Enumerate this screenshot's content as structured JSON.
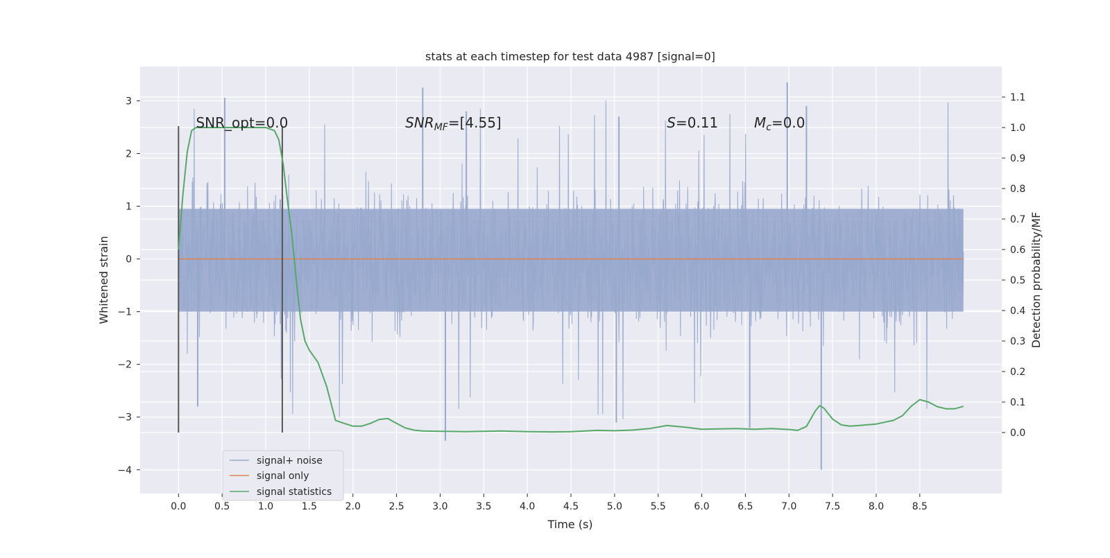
{
  "chart_data": {
    "type": "line",
    "title": "stats at each timestep for test data 4987 [signal=0]",
    "xlabel": "Time (s)",
    "ylabel": "Whitened strain",
    "y2label": "Detection probability/MF",
    "xlim": [
      -0.44,
      9.44
    ],
    "ylim": [
      -4.45,
      3.65
    ],
    "y2lim": [
      -0.2,
      1.2
    ],
    "xticks": [
      0.0,
      0.5,
      1.0,
      1.5,
      2.0,
      2.5,
      3.0,
      3.5,
      4.0,
      4.5,
      5.0,
      5.5,
      6.0,
      6.5,
      7.0,
      7.5,
      8.0,
      8.5
    ],
    "xtick_labels": [
      "0.0",
      "0.5",
      "1.0",
      "1.5",
      "2.0",
      "2.5",
      "3.0",
      "3.5",
      "4.0",
      "4.5",
      "5.0",
      "5.5",
      "6.0",
      "6.5",
      "7.0",
      "7.5",
      "8.0",
      "8.5"
    ],
    "yticks": [
      3,
      2,
      1,
      0,
      -1,
      -2,
      -3,
      -4
    ],
    "ytick_labels": [
      "3",
      "2",
      "1",
      "0",
      "−1",
      "−2",
      "−3",
      "−4"
    ],
    "y2ticks": [
      1.1,
      1.0,
      0.9,
      0.8,
      0.7,
      0.6,
      0.5,
      0.4,
      0.3,
      0.2,
      0.1,
      0.0
    ],
    "y2tick_labels": [
      "1.1",
      "1.0",
      "0.9",
      "0.8",
      "0.7",
      "0.6",
      "0.5",
      "0.4",
      "0.3",
      "0.2",
      "0.1",
      "0.0"
    ],
    "grid": true,
    "legend_position": "lower-left",
    "colors": {
      "background": "#eaeaf2",
      "grid": "#ffffff",
      "noise": "#98a9cd",
      "signal": "#dd8452",
      "stats": "#55a868",
      "vline": "#555555"
    },
    "annotations": [
      {
        "name": "snr-opt",
        "parts": [
          {
            "t": "SNR_opt=0.0",
            "italic": false
          }
        ],
        "x": 0.2,
        "y2": 1.0
      },
      {
        "name": "snr-mf",
        "parts": [
          {
            "t": "SNR",
            "italic": true
          },
          {
            "t": "MF",
            "italic": true,
            "sub": true
          },
          {
            "t": "=[4.55]",
            "italic": false
          }
        ],
        "x": 2.6,
        "y2": 1.0
      },
      {
        "name": "s-value",
        "parts": [
          {
            "t": "S",
            "italic": true
          },
          {
            "t": "=0.11",
            "italic": false
          }
        ],
        "x": 5.6,
        "y2": 1.0
      },
      {
        "name": "mc-value",
        "parts": [
          {
            "t": "M",
            "italic": true
          },
          {
            "t": "c",
            "italic": true,
            "sub": true
          },
          {
            "t": "=0.0",
            "italic": false
          }
        ],
        "x": 6.6,
        "y2": 1.0
      }
    ],
    "vertical_lines": [
      {
        "x": 0.0,
        "y2_from": 0.0,
        "y2_to": 1.0
      },
      {
        "x": 1.19,
        "y2_from": 0.0,
        "y2_to": 1.0
      }
    ],
    "series": [
      {
        "name": "signal+ noise",
        "axis": "left",
        "style": "noise",
        "x_range": [
          0.0,
          9.0
        ],
        "core_band": [
          -1.0,
          0.95
        ],
        "spike_high": [
          3.06,
          3.25,
          3.35,
          2.9,
          2.7,
          2.8
        ],
        "spike_low": [
          -4.0,
          -3.45,
          -3.1,
          -3.2,
          -2.8
        ]
      },
      {
        "name": "signal only",
        "axis": "left",
        "style": "signal",
        "x": [
          0.0,
          9.0
        ],
        "y": [
          0.0,
          0.0
        ]
      },
      {
        "name": "signal statistics",
        "axis": "right",
        "style": "stats",
        "x": [
          0.0,
          0.05,
          0.1,
          0.15,
          0.2,
          0.3,
          0.4,
          0.5,
          0.6,
          0.7,
          0.8,
          0.9,
          1.0,
          1.05,
          1.1,
          1.15,
          1.2,
          1.25,
          1.3,
          1.35,
          1.4,
          1.45,
          1.5,
          1.6,
          1.7,
          1.8,
          1.9,
          2.0,
          2.1,
          2.2,
          2.3,
          2.4,
          2.5,
          2.6,
          2.7,
          2.8,
          3.0,
          3.3,
          3.5,
          3.7,
          4.0,
          4.3,
          4.5,
          4.8,
          5.0,
          5.2,
          5.4,
          5.6,
          5.8,
          6.0,
          6.2,
          6.4,
          6.6,
          6.8,
          7.0,
          7.1,
          7.2,
          7.3,
          7.35,
          7.4,
          7.5,
          7.6,
          7.7,
          7.8,
          8.0,
          8.2,
          8.3,
          8.4,
          8.5,
          8.6,
          8.7,
          8.8,
          8.9,
          9.0
        ],
        "y": [
          0.6,
          0.78,
          0.92,
          0.99,
          1.0,
          1.0,
          1.0,
          1.0,
          1.0,
          1.0,
          1.0,
          1.0,
          1.0,
          0.995,
          0.99,
          0.96,
          0.88,
          0.76,
          0.65,
          0.5,
          0.37,
          0.3,
          0.27,
          0.23,
          0.15,
          0.04,
          0.03,
          0.021,
          0.021,
          0.03,
          0.043,
          0.046,
          0.03,
          0.015,
          0.008,
          0.005,
          0.004,
          0.003,
          0.004,
          0.005,
          0.003,
          0.002,
          0.003,
          0.007,
          0.006,
          0.008,
          0.013,
          0.023,
          0.018,
          0.011,
          0.012,
          0.013,
          0.011,
          0.013,
          0.01,
          0.007,
          0.02,
          0.07,
          0.088,
          0.08,
          0.044,
          0.025,
          0.021,
          0.023,
          0.028,
          0.04,
          0.055,
          0.086,
          0.108,
          0.1,
          0.085,
          0.078,
          0.078,
          0.086
        ]
      }
    ]
  }
}
